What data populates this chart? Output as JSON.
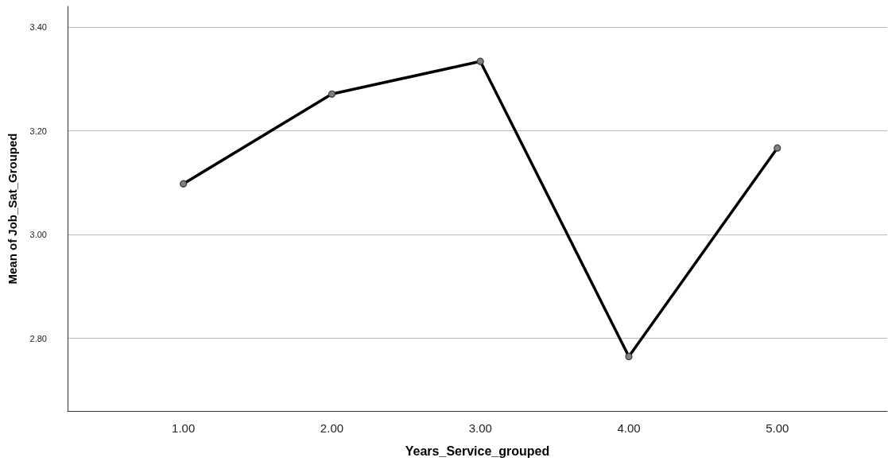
{
  "chart_data": {
    "type": "line",
    "xlabel": "Years_Service_grouped",
    "ylabel": "Mean of Job_Sat_Grouped",
    "x": [
      1,
      2,
      3,
      4,
      5
    ],
    "series": [
      {
        "color": "#000000",
        "values": [
          3.098,
          3.271,
          3.334,
          2.765,
          3.167
        ]
      }
    ],
    "xlim": [
      0.22,
      5.74
    ],
    "xticks": [
      {
        "value": 1,
        "label": "1.00"
      },
      {
        "value": 2,
        "label": "2.00"
      },
      {
        "value": 3,
        "label": "3.00"
      },
      {
        "value": 4,
        "label": "4.00"
      },
      {
        "value": 5,
        "label": "5.00"
      }
    ],
    "ylim": [
      2.66,
      3.44
    ],
    "yticks": [
      {
        "value": 2.8,
        "label": "2.80"
      },
      {
        "value": 3,
        "label": "3.00"
      },
      {
        "value": 3.2,
        "label": "3.20"
      },
      {
        "value": 3.4,
        "label": "3.40"
      }
    ],
    "grid": "y",
    "marker": "circle",
    "line_style": "solid"
  }
}
